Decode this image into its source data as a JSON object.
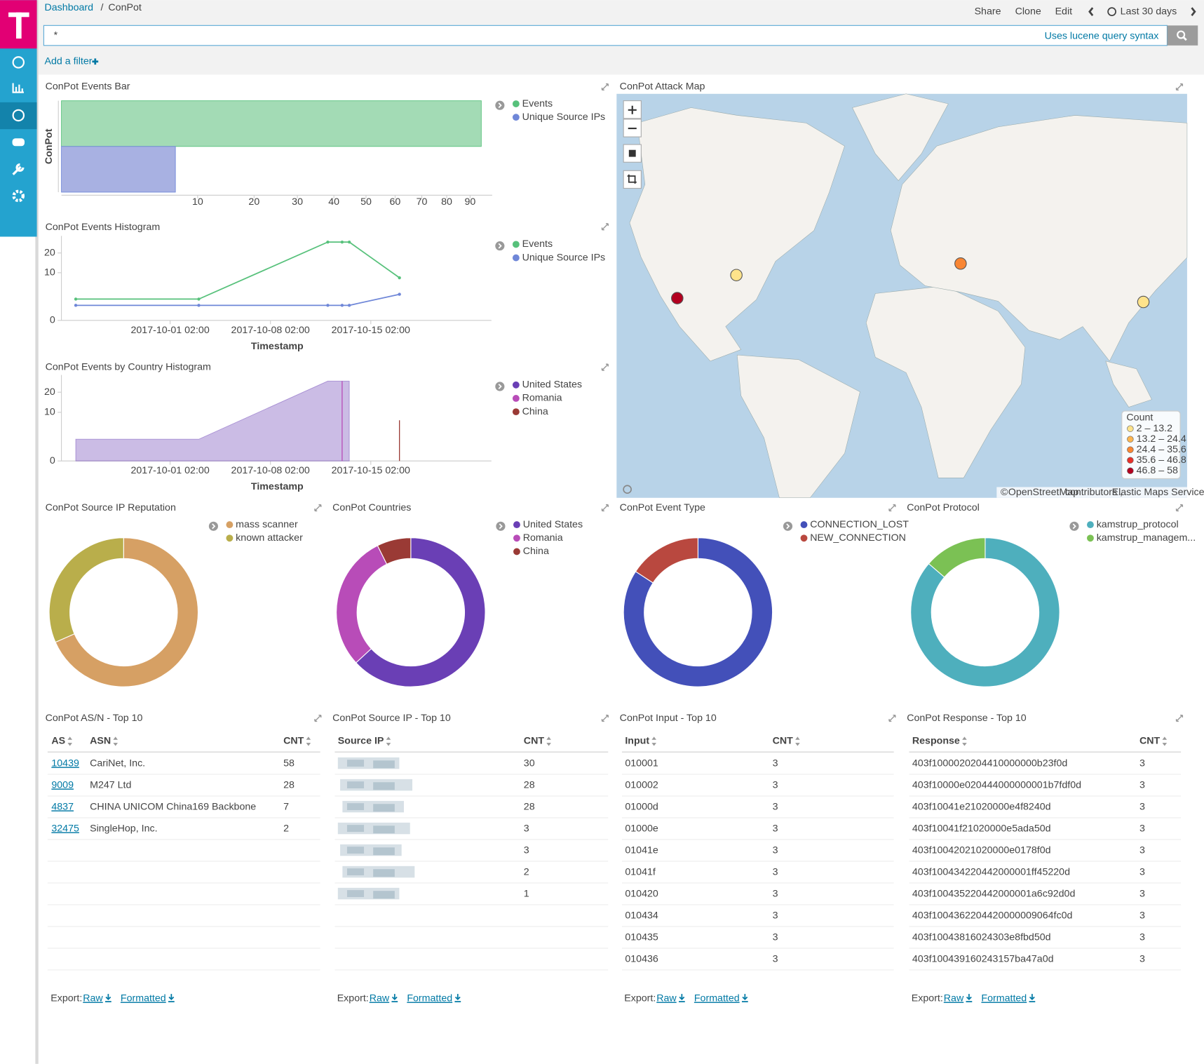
{
  "header": {
    "breadcrumb": [
      "Dashboard",
      "/",
      "ConPot"
    ],
    "actions": [
      "Share",
      "Clone",
      "Edit"
    ],
    "time_range": "Last 30 days",
    "query": "*",
    "query_hint": "Uses lucene query syntax",
    "add_filter": "Add a filter"
  },
  "chart_data": [
    {
      "type": "hbar",
      "title": "ConPot Events Bar",
      "category_label": "ConPot",
      "scale": "sqrt",
      "series": [
        {
          "name": "Events",
          "color": "#57c17b",
          "fill": "#a3dbb5",
          "values": [
            95
          ]
        },
        {
          "name": "Unique Source IPs",
          "color": "#6f87d8",
          "fill": "#a8b1e2",
          "values": [
            7
          ]
        }
      ],
      "xlim": [
        0,
        100
      ],
      "xticks": [
        10,
        20,
        30,
        40,
        50,
        60,
        70,
        80,
        90
      ]
    },
    {
      "type": "line",
      "title": "ConPot Events Histogram",
      "scale": "sqrt",
      "xlabel": "Timestamp",
      "x": [
        "2017-09-24 12:00",
        "2017-10-03 02:00",
        "2017-10-12 02:00",
        "2017-10-13 02:00",
        "2017-10-13 14:00",
        "2017-10-17 02:00"
      ],
      "series": [
        {
          "name": "Events",
          "color": "#57c17b",
          "values": [
            2,
            2,
            27,
            27,
            27,
            8
          ]
        },
        {
          "name": "Unique Source IPs",
          "color": "#6f87d8",
          "values": [
            1,
            1,
            1,
            1,
            1,
            3
          ]
        }
      ],
      "xlim": [
        "2017-09-23 12:00",
        "2017-10-23 12:00"
      ],
      "xticks": [
        "2017-10-01 02:00",
        "2017-10-08 02:00",
        "2017-10-15 02:00"
      ],
      "ylim": [
        0,
        27
      ],
      "yticks": [
        0,
        10,
        20
      ]
    },
    {
      "type": "area",
      "title": "ConPot Events by Country Histogram",
      "scale": "sqrt",
      "xlabel": "Timestamp",
      "x": [
        "2017-09-24 12:00",
        "2017-10-03 02:00",
        "2017-10-12 02:00",
        "2017-10-13 02:00",
        "2017-10-13 14:00",
        "2017-10-17 02:00"
      ],
      "series": [
        {
          "name": "United States",
          "color": "#6a3fb5",
          "values": [
            2,
            2,
            27,
            27,
            27,
            null
          ]
        },
        {
          "name": "Romania",
          "color": "#b84cb8",
          "values": [
            null,
            null,
            null,
            27,
            null,
            null
          ]
        },
        {
          "name": "China",
          "color": "#9a3a35",
          "values": [
            null,
            null,
            null,
            null,
            null,
            7
          ]
        }
      ],
      "xlim": [
        "2017-09-23 12:00",
        "2017-10-23 12:00"
      ],
      "xticks": [
        "2017-10-01 02:00",
        "2017-10-08 02:00",
        "2017-10-15 02:00"
      ],
      "ylim": [
        0,
        27
      ],
      "yticks": [
        0,
        10,
        20
      ]
    },
    {
      "type": "donut",
      "title": "ConPot Source IP Reputation",
      "categories": [
        "mass scanner",
        "known attacker"
      ],
      "values": [
        65,
        30
      ],
      "colors": [
        "#d6a064",
        "#b9ae4b"
      ]
    },
    {
      "type": "donut",
      "title": "ConPot Countries",
      "categories": [
        "United States",
        "Romania",
        "China"
      ],
      "values": [
        60,
        28,
        7
      ],
      "colors": [
        "#6a3fb5",
        "#b84cb8",
        "#9a3a35"
      ]
    },
    {
      "type": "donut",
      "title": "ConPot Event Type",
      "categories": [
        "CONNECTION_LOST",
        "NEW_CONNECTION"
      ],
      "values": [
        80,
        15
      ],
      "colors": [
        "#4350b9",
        "#b9483f"
      ]
    },
    {
      "type": "donut",
      "title": "ConPot Protocol",
      "categories": [
        "kamstrup_protocol",
        "kamstrup_managem..."
      ],
      "values": [
        82,
        13
      ],
      "colors": [
        "#4eafbd",
        "#7bc154"
      ]
    }
  ],
  "map": {
    "title": "ConPot Attack Map",
    "legend_title": "Count",
    "legend": [
      {
        "label": "2 – 13.2",
        "color": "#fee38b"
      },
      {
        "label": "13.2 – 24.4",
        "color": "#fdb54f"
      },
      {
        "label": "24.4 – 35.6",
        "color": "#f98633"
      },
      {
        "label": "35.6 – 46.8",
        "color": "#e7312a"
      },
      {
        "label": "46.8 – 58",
        "color": "#b3001f"
      }
    ],
    "points": [
      {
        "value": 58,
        "color": "#b3001f"
      },
      {
        "value": 2,
        "color": "#fee38b"
      },
      {
        "value": 28,
        "color": "#f98633"
      },
      {
        "value": 7,
        "color": "#fee38b"
      }
    ],
    "attribution": [
      "©",
      "OpenStreetMap",
      "contributors ,",
      "Elastic Maps Service"
    ]
  },
  "tables": [
    {
      "title": "ConPot AS/N - Top 10",
      "columns": [
        "AS",
        "ASN",
        "CNT"
      ],
      "rows": [
        [
          "10439",
          "CariNet, Inc.",
          58
        ],
        [
          "9009",
          "M247 Ltd",
          28
        ],
        [
          "4837",
          "CHINA UNICOM China169 Backbone",
          7
        ],
        [
          "32475",
          "SingleHop, Inc.",
          2
        ]
      ]
    },
    {
      "title": "ConPot Source IP - Top 10",
      "columns": [
        "Source IP",
        "CNT"
      ],
      "rows": [
        [
          null,
          30
        ],
        [
          null,
          28
        ],
        [
          null,
          28
        ],
        [
          null,
          3
        ],
        [
          null,
          3
        ],
        [
          null,
          2
        ],
        [
          null,
          1
        ]
      ]
    },
    {
      "title": "ConPot Input - Top 10",
      "columns": [
        "Input",
        "CNT"
      ],
      "rows": [
        [
          "010001",
          3
        ],
        [
          "010002",
          3
        ],
        [
          "01000d",
          3
        ],
        [
          "01000e",
          3
        ],
        [
          "01041e",
          3
        ],
        [
          "01041f",
          3
        ],
        [
          "010420",
          3
        ],
        [
          "010434",
          3
        ],
        [
          "010435",
          3
        ],
        [
          "010436",
          3
        ]
      ]
    },
    {
      "title": "ConPot Response - Top 10",
      "columns": [
        "Response",
        "CNT"
      ],
      "rows": [
        [
          "403f1000020204410000000b23f0d",
          3
        ],
        [
          "403f10000e020444000000001b7fdf0d",
          3
        ],
        [
          "403f10041e21020000e4f8240d",
          3
        ],
        [
          "403f10041f21020000e5ada50d",
          3
        ],
        [
          "403f10042021020000e0178f0d",
          3
        ],
        [
          "403f100434220442000001ff45220d",
          3
        ],
        [
          "403f100435220442000001a6c92d0d",
          3
        ],
        [
          "403f1004362204420000009064fc0d",
          3
        ],
        [
          "403f10043816024303e8fbd50d",
          3
        ],
        [
          "403f100439160243157ba47a0d",
          3
        ]
      ]
    }
  ],
  "export": {
    "label": "Export:",
    "links": [
      "Raw",
      "Formatted"
    ]
  }
}
